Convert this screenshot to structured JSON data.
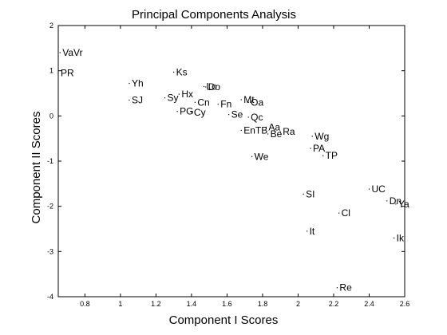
{
  "chart_data": {
    "type": "scatter",
    "title": "Principal Components Analysis",
    "xlabel": "Component I  Scores",
    "ylabel": "Component II Scores",
    "xlim": [
      0.65,
      2.6
    ],
    "ylim": [
      -4,
      2
    ],
    "xticks": [
      0.8,
      1,
      1.2,
      1.4,
      1.6,
      1.8,
      2,
      2.2,
      2.4,
      2.6
    ],
    "xtick_labels": [
      "0.8",
      "1",
      "1.2",
      "1.4",
      "1.6",
      "1.8",
      "2",
      "2.2",
      "2.4",
      "2.6"
    ],
    "yticks": [
      2,
      1,
      0,
      -1,
      -2,
      -3,
      -4
    ],
    "ytick_labels": [
      "2",
      "1",
      "0",
      "-1",
      "-2",
      "-3",
      "-4"
    ],
    "grid": false,
    "points": [
      {
        "label": "VaVr",
        "x": 0.66,
        "y": 1.4
      },
      {
        "label": "PR",
        "x": 0.65,
        "y": 0.95
      },
      {
        "label": "Yh",
        "x": 1.05,
        "y": 0.72
      },
      {
        "label": "SJ",
        "x": 1.05,
        "y": 0.35
      },
      {
        "label": "Ks",
        "x": 1.3,
        "y": 0.97
      },
      {
        "label": "Lo",
        "x": 1.47,
        "y": 0.65
      },
      {
        "label": "Do",
        "x": 1.48,
        "y": 0.64
      },
      {
        "label": "Hx",
        "x": 1.33,
        "y": 0.48
      },
      {
        "label": "Sy",
        "x": 1.25,
        "y": 0.4
      },
      {
        "label": "Cn",
        "x": 1.42,
        "y": 0.3
      },
      {
        "label": "PG",
        "x": 1.32,
        "y": 0.1
      },
      {
        "label": "Cy",
        "x": 1.4,
        "y": 0.08
      },
      {
        "label": "Fn",
        "x": 1.55,
        "y": 0.26
      },
      {
        "label": "Mt",
        "x": 1.68,
        "y": 0.36
      },
      {
        "label": "Oa",
        "x": 1.72,
        "y": 0.3
      },
      {
        "label": "Se",
        "x": 1.61,
        "y": 0.03
      },
      {
        "label": "Qc",
        "x": 1.72,
        "y": -0.03
      },
      {
        "label": "Aa",
        "x": 1.82,
        "y": -0.25
      },
      {
        "label": "EnTB",
        "x": 1.68,
        "y": -0.32
      },
      {
        "label": "Be",
        "x": 1.83,
        "y": -0.4
      },
      {
        "label": "Ra",
        "x": 1.9,
        "y": -0.35
      },
      {
        "label": "Wg",
        "x": 2.08,
        "y": -0.45
      },
      {
        "label": "PA",
        "x": 2.07,
        "y": -0.72
      },
      {
        "label": "TP",
        "x": 2.14,
        "y": -0.88
      },
      {
        "label": "We",
        "x": 1.74,
        "y": -0.9
      },
      {
        "label": "SI",
        "x": 2.03,
        "y": -1.73
      },
      {
        "label": "UC",
        "x": 2.4,
        "y": -1.62
      },
      {
        "label": "Dn",
        "x": 2.5,
        "y": -1.88
      },
      {
        "label": "Ya",
        "x": 2.55,
        "y": -1.95
      },
      {
        "label": "Cl",
        "x": 2.23,
        "y": -2.15
      },
      {
        "label": "It",
        "x": 2.05,
        "y": -2.55
      },
      {
        "label": "Ik",
        "x": 2.54,
        "y": -2.7
      },
      {
        "label": "Re",
        "x": 2.22,
        "y": -3.8
      }
    ]
  }
}
